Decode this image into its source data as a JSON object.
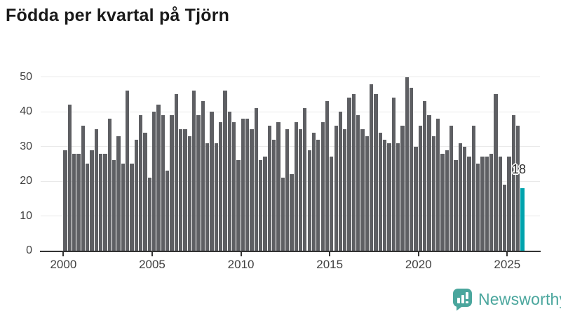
{
  "title": "Födda per kvartal på Tjörn",
  "chart_data": {
    "type": "bar",
    "title": "Födda per kvartal på Tjörn",
    "x_start": "2000 Q1",
    "x_end": "2025 Q4",
    "frequency": "quarterly",
    "x_tick_labels": [
      "2000",
      "2005",
      "2010",
      "2015",
      "2020",
      "2025"
    ],
    "y_ticks": [
      0,
      10,
      20,
      30,
      40,
      50
    ],
    "ylim": [
      0,
      50
    ],
    "grid": "horizontal",
    "legend": "none",
    "values": [
      29,
      42,
      28,
      28,
      36,
      25,
      29,
      35,
      28,
      28,
      38,
      26,
      33,
      25,
      46,
      25,
      32,
      39,
      34,
      21,
      40,
      42,
      39,
      23,
      39,
      45,
      35,
      35,
      33,
      46,
      39,
      43,
      31,
      40,
      31,
      37,
      46,
      40,
      37,
      26,
      38,
      38,
      35,
      41,
      26,
      27,
      36,
      32,
      37,
      21,
      35,
      22,
      37,
      35,
      41,
      29,
      34,
      32,
      37,
      43,
      27,
      36,
      40,
      35,
      44,
      45,
      39,
      35,
      33,
      48,
      45,
      34,
      32,
      31,
      44,
      31,
      36,
      50,
      47,
      30,
      36,
      43,
      39,
      33,
      38,
      28,
      29,
      36,
      26,
      31,
      30,
      27,
      36,
      25,
      27,
      27,
      28,
      45,
      27,
      19,
      27,
      39,
      36,
      18
    ],
    "highlighted_last_bar": true,
    "highlighted_value_label": "18"
  },
  "colors": {
    "bar": "#5e5f63",
    "highlight": "#00a3ad",
    "gridline": "#e9e9e9",
    "axis": "#333333",
    "tick_text": "#404040",
    "title_text": "#1a1a1a",
    "logo": "#4aa69d"
  },
  "branding": {
    "logo_text": "Newsworthy"
  }
}
